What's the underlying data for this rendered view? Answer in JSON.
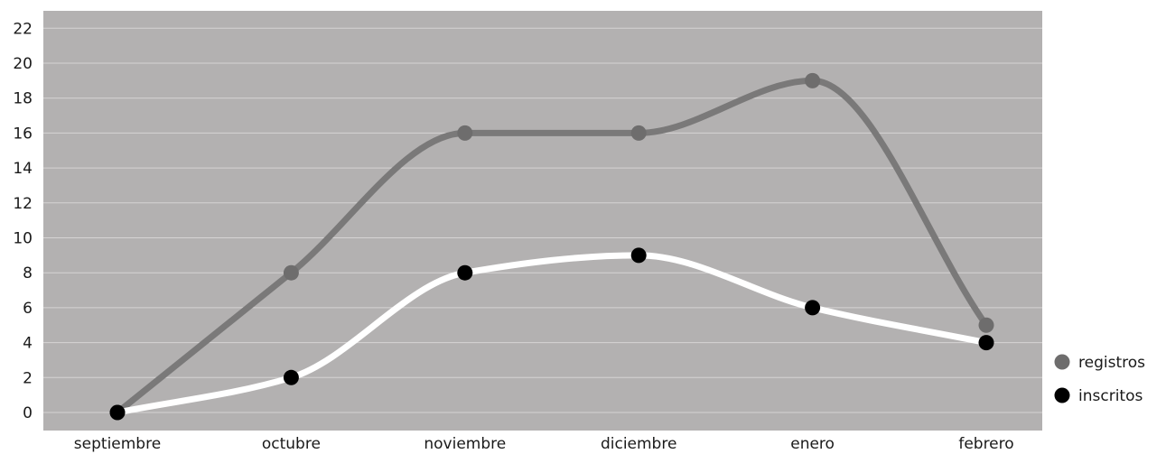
{
  "chart_data": {
    "type": "line",
    "title": "",
    "xlabel": "",
    "ylabel": "",
    "categories": [
      "septiembre",
      "octubre",
      "noviembre",
      "diciembre",
      "enero",
      "febrero"
    ],
    "ylim": [
      0,
      22
    ],
    "yticks": [
      0,
      2,
      4,
      6,
      8,
      10,
      12,
      14,
      16,
      18,
      20,
      22
    ],
    "grid": true,
    "smooth": true,
    "legend_position": "right",
    "plot_background": "#b3b1b1",
    "series": [
      {
        "name": "registros",
        "values": [
          0,
          8,
          16,
          16,
          19,
          5
        ],
        "line_color": "#7a7979",
        "marker_color": "#6e6d6d"
      },
      {
        "name": "inscritos",
        "values": [
          0,
          2,
          8,
          9,
          6,
          4
        ],
        "line_color": "#ffffff",
        "marker_color": "#000000"
      }
    ]
  }
}
